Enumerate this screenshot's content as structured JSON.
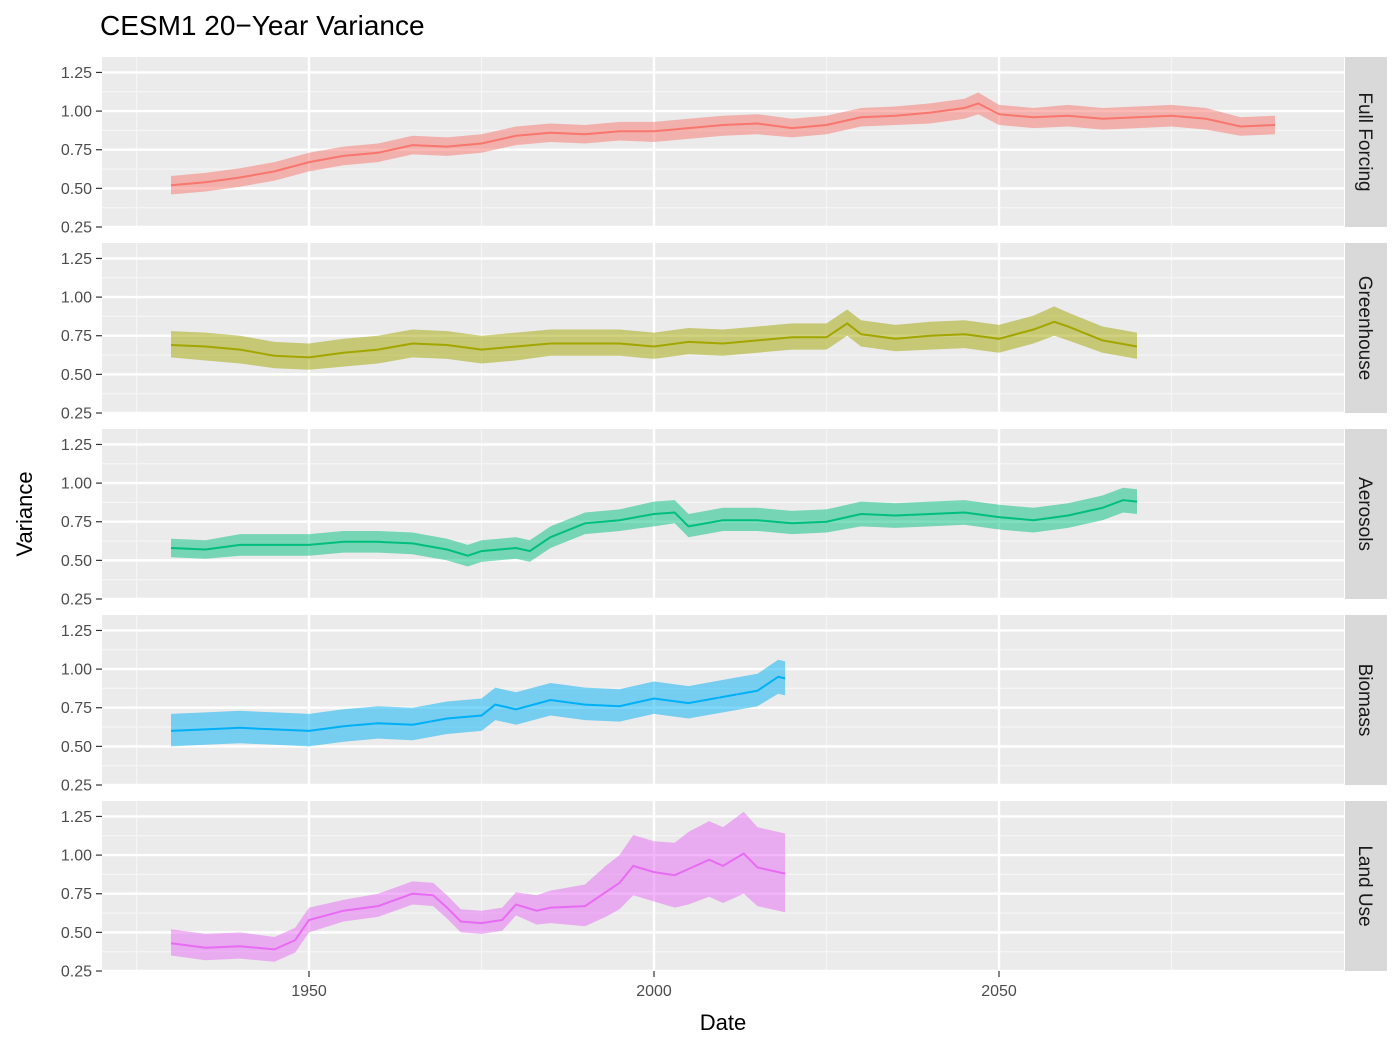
{
  "chart_data": {
    "type": "area",
    "title": "CESM1 20−Year Variance",
    "xlabel": "Date",
    "ylabel": "Variance",
    "xlim": [
      1920,
      2100
    ],
    "ylim": [
      0.25,
      1.35
    ],
    "x_ticks": [
      1950,
      2000,
      2050
    ],
    "y_ticks": [
      0.25,
      0.5,
      0.75,
      1.0,
      1.25
    ],
    "x_tick_labels": [
      "1950",
      "2000",
      "2050"
    ],
    "y_tick_labels": [
      "0.25",
      "0.50",
      "0.75",
      "1.00",
      "1.25"
    ],
    "grid": true,
    "legend": "none",
    "panels": [
      {
        "name": "Full Forcing",
        "color": "#F8766D",
        "x": [
          1930,
          1935,
          1940,
          1945,
          1950,
          1955,
          1960,
          1965,
          1970,
          1975,
          1980,
          1985,
          1990,
          1995,
          2000,
          2005,
          2010,
          2015,
          2020,
          2025,
          2030,
          2035,
          2040,
          2045,
          2047,
          2050,
          2055,
          2060,
          2065,
          2070,
          2075,
          2080,
          2085,
          2090
        ],
        "y": [
          0.52,
          0.54,
          0.57,
          0.61,
          0.67,
          0.71,
          0.73,
          0.78,
          0.77,
          0.79,
          0.84,
          0.86,
          0.85,
          0.87,
          0.87,
          0.89,
          0.91,
          0.92,
          0.89,
          0.91,
          0.96,
          0.97,
          0.99,
          1.02,
          1.05,
          0.98,
          0.96,
          0.97,
          0.95,
          0.96,
          0.97,
          0.95,
          0.9,
          0.91
        ],
        "lower": [
          0.46,
          0.48,
          0.51,
          0.55,
          0.61,
          0.65,
          0.67,
          0.72,
          0.71,
          0.73,
          0.78,
          0.8,
          0.79,
          0.81,
          0.8,
          0.82,
          0.84,
          0.85,
          0.83,
          0.85,
          0.9,
          0.91,
          0.92,
          0.95,
          0.98,
          0.91,
          0.89,
          0.9,
          0.88,
          0.89,
          0.9,
          0.88,
          0.84,
          0.85
        ],
        "upper": [
          0.58,
          0.6,
          0.63,
          0.67,
          0.73,
          0.77,
          0.79,
          0.84,
          0.83,
          0.85,
          0.9,
          0.92,
          0.91,
          0.93,
          0.93,
          0.95,
          0.97,
          0.98,
          0.95,
          0.97,
          1.02,
          1.03,
          1.05,
          1.08,
          1.12,
          1.04,
          1.02,
          1.04,
          1.02,
          1.03,
          1.04,
          1.02,
          0.96,
          0.97
        ]
      },
      {
        "name": "Greenhouse",
        "color": "#A3A500",
        "x": [
          1930,
          1935,
          1940,
          1945,
          1950,
          1955,
          1960,
          1965,
          1970,
          1975,
          1980,
          1985,
          1990,
          1995,
          2000,
          2005,
          2010,
          2015,
          2020,
          2025,
          2028,
          2030,
          2035,
          2040,
          2045,
          2050,
          2055,
          2058,
          2060,
          2065,
          2070
        ],
        "y": [
          0.69,
          0.68,
          0.66,
          0.62,
          0.61,
          0.64,
          0.66,
          0.7,
          0.69,
          0.66,
          0.68,
          0.7,
          0.7,
          0.7,
          0.68,
          0.71,
          0.7,
          0.72,
          0.74,
          0.74,
          0.83,
          0.76,
          0.73,
          0.75,
          0.76,
          0.73,
          0.79,
          0.84,
          0.81,
          0.72,
          0.68
        ],
        "lower": [
          0.61,
          0.59,
          0.57,
          0.54,
          0.53,
          0.55,
          0.57,
          0.61,
          0.6,
          0.57,
          0.59,
          0.62,
          0.62,
          0.62,
          0.6,
          0.63,
          0.62,
          0.64,
          0.66,
          0.66,
          0.75,
          0.68,
          0.65,
          0.66,
          0.67,
          0.64,
          0.7,
          0.75,
          0.72,
          0.64,
          0.6
        ],
        "upper": [
          0.78,
          0.77,
          0.75,
          0.71,
          0.7,
          0.73,
          0.75,
          0.79,
          0.78,
          0.75,
          0.77,
          0.79,
          0.79,
          0.79,
          0.77,
          0.8,
          0.79,
          0.81,
          0.83,
          0.83,
          0.92,
          0.85,
          0.82,
          0.84,
          0.85,
          0.82,
          0.88,
          0.94,
          0.9,
          0.81,
          0.77
        ]
      },
      {
        "name": "Aerosols",
        "color": "#00BF7D",
        "x": [
          1930,
          1935,
          1940,
          1945,
          1950,
          1955,
          1960,
          1965,
          1970,
          1973,
          1975,
          1980,
          1982,
          1985,
          1990,
          1995,
          2000,
          2003,
          2005,
          2010,
          2015,
          2020,
          2025,
          2030,
          2035,
          2040,
          2045,
          2050,
          2055,
          2060,
          2065,
          2068,
          2070
        ],
        "y": [
          0.58,
          0.57,
          0.6,
          0.6,
          0.6,
          0.62,
          0.62,
          0.61,
          0.57,
          0.53,
          0.56,
          0.58,
          0.56,
          0.65,
          0.74,
          0.76,
          0.8,
          0.81,
          0.72,
          0.76,
          0.76,
          0.74,
          0.75,
          0.8,
          0.79,
          0.8,
          0.81,
          0.78,
          0.76,
          0.79,
          0.84,
          0.89,
          0.88
        ],
        "lower": [
          0.52,
          0.51,
          0.53,
          0.53,
          0.53,
          0.55,
          0.55,
          0.54,
          0.5,
          0.46,
          0.49,
          0.51,
          0.49,
          0.58,
          0.67,
          0.69,
          0.72,
          0.74,
          0.65,
          0.69,
          0.69,
          0.67,
          0.68,
          0.72,
          0.71,
          0.72,
          0.73,
          0.7,
          0.68,
          0.71,
          0.76,
          0.81,
          0.8
        ],
        "upper": [
          0.64,
          0.63,
          0.67,
          0.67,
          0.67,
          0.69,
          0.69,
          0.68,
          0.64,
          0.6,
          0.63,
          0.65,
          0.63,
          0.72,
          0.81,
          0.83,
          0.88,
          0.89,
          0.8,
          0.84,
          0.84,
          0.82,
          0.83,
          0.88,
          0.87,
          0.88,
          0.89,
          0.86,
          0.84,
          0.87,
          0.92,
          0.97,
          0.96
        ]
      },
      {
        "name": "Biomass",
        "color": "#00B0F6",
        "x": [
          1930,
          1935,
          1940,
          1945,
          1950,
          1955,
          1960,
          1965,
          1970,
          1975,
          1977,
          1980,
          1985,
          1990,
          1995,
          2000,
          2005,
          2010,
          2015,
          2018,
          2019
        ],
        "y": [
          0.6,
          0.61,
          0.62,
          0.61,
          0.6,
          0.63,
          0.65,
          0.64,
          0.68,
          0.7,
          0.77,
          0.74,
          0.8,
          0.77,
          0.76,
          0.81,
          0.78,
          0.82,
          0.86,
          0.95,
          0.94
        ],
        "lower": [
          0.5,
          0.51,
          0.52,
          0.51,
          0.5,
          0.53,
          0.55,
          0.54,
          0.58,
          0.6,
          0.67,
          0.64,
          0.7,
          0.67,
          0.66,
          0.71,
          0.68,
          0.72,
          0.76,
          0.84,
          0.83
        ],
        "upper": [
          0.71,
          0.72,
          0.73,
          0.72,
          0.71,
          0.74,
          0.76,
          0.75,
          0.79,
          0.81,
          0.88,
          0.85,
          0.91,
          0.88,
          0.87,
          0.92,
          0.89,
          0.93,
          0.97,
          1.06,
          1.05
        ]
      },
      {
        "name": "Land Use",
        "color": "#E76BF3",
        "x": [
          1930,
          1935,
          1940,
          1945,
          1948,
          1950,
          1955,
          1960,
          1965,
          1968,
          1970,
          1972,
          1975,
          1978,
          1980,
          1983,
          1985,
          1990,
          1993,
          1995,
          1997,
          2000,
          2003,
          2005,
          2008,
          2010,
          2013,
          2015,
          2019
        ],
        "y": [
          0.43,
          0.4,
          0.41,
          0.39,
          0.45,
          0.58,
          0.64,
          0.67,
          0.75,
          0.74,
          0.66,
          0.57,
          0.56,
          0.58,
          0.68,
          0.64,
          0.66,
          0.67,
          0.76,
          0.82,
          0.93,
          0.89,
          0.87,
          0.91,
          0.97,
          0.93,
          1.01,
          0.92,
          0.88
        ],
        "lower": [
          0.35,
          0.32,
          0.33,
          0.31,
          0.37,
          0.5,
          0.57,
          0.6,
          0.68,
          0.67,
          0.59,
          0.5,
          0.49,
          0.51,
          0.61,
          0.55,
          0.56,
          0.54,
          0.6,
          0.65,
          0.74,
          0.7,
          0.66,
          0.68,
          0.73,
          0.69,
          0.75,
          0.67,
          0.63
        ],
        "upper": [
          0.52,
          0.49,
          0.5,
          0.47,
          0.53,
          0.66,
          0.71,
          0.75,
          0.83,
          0.82,
          0.74,
          0.65,
          0.64,
          0.66,
          0.76,
          0.74,
          0.77,
          0.81,
          0.93,
          1.0,
          1.13,
          1.09,
          1.08,
          1.15,
          1.22,
          1.18,
          1.28,
          1.18,
          1.14
        ]
      }
    ]
  }
}
